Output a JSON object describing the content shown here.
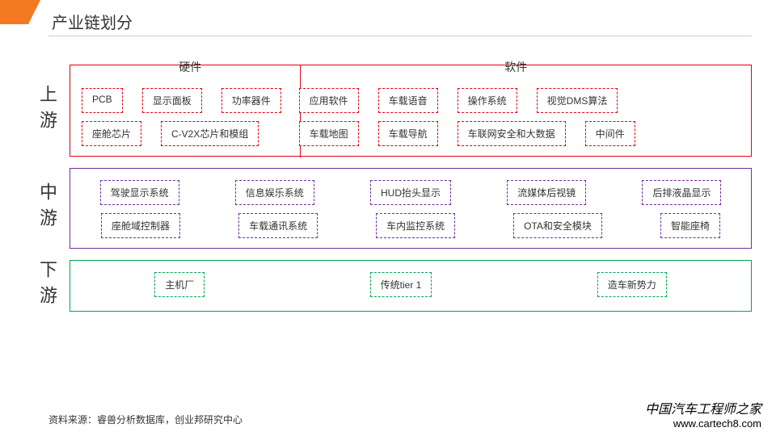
{
  "title": "产业链划分",
  "colors": {
    "accent": "#f47920",
    "upstream": "#e60012",
    "midstream": "#7030a0",
    "downstream": "#00a651",
    "rule": "#cccccc",
    "text": "#333333"
  },
  "rows": [
    {
      "key": "upstream",
      "label": "上游",
      "colorClass": "red",
      "groups": [
        {
          "title": "硬件",
          "widthClass": "left",
          "lines": [
            [
              "PCB",
              "显示面板",
              "功率器件"
            ],
            [
              "座舱芯片",
              "C-V2X芯片和模组"
            ]
          ]
        },
        {
          "title": "软件",
          "widthClass": "right",
          "lines": [
            [
              "应用软件",
              "车载语音",
              "操作系统",
              "视觉DMS算法"
            ],
            [
              "车载地图",
              "车载导航",
              "车联网安全和大数据",
              "中间件"
            ]
          ]
        }
      ]
    },
    {
      "key": "midstream",
      "label": "中游",
      "colorClass": "purple",
      "lines": [
        [
          "驾驶显示系统",
          "信息娱乐系统",
          "HUD抬头显示",
          "流媒体后视镜",
          "后排液晶显示"
        ],
        [
          "座舱域控制器",
          "车载通讯系统",
          "车内监控系统",
          "OTA和安全模块",
          "智能座椅"
        ]
      ]
    },
    {
      "key": "downstream",
      "label": "下游",
      "colorClass": "green",
      "lines": [
        [
          "主机厂",
          "传统tier 1",
          "造车新势力"
        ]
      ]
    }
  ],
  "source": "资料来源：睿兽分析数据库，创业邦研究中心",
  "watermark": {
    "cn": "中国汽车工程师之家",
    "url": "www.cartech8.com"
  }
}
